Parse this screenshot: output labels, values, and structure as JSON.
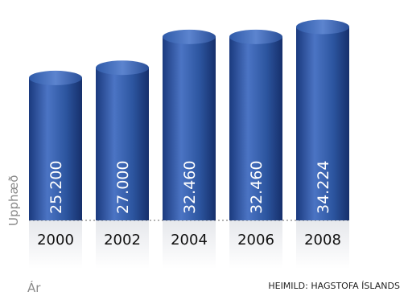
{
  "chart_data": {
    "type": "bar",
    "categories": [
      "2000",
      "2002",
      "2004",
      "2006",
      "2008"
    ],
    "values": [
      25200,
      27000,
      32460,
      32460,
      34224
    ],
    "value_labels": [
      "25.200",
      "27.000",
      "32.460",
      "32.460",
      "34.224"
    ],
    "title": "",
    "xlabel": "Ár",
    "ylabel": "Upphæð",
    "source": "HEIMILD: HAGSTOFA ÍSLANDS",
    "grid": false,
    "bar_color": "#2c4f9a"
  }
}
